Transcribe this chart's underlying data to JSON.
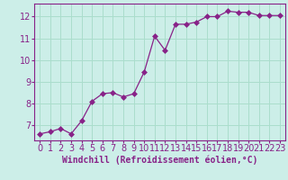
{
  "x": [
    0,
    1,
    2,
    3,
    4,
    5,
    6,
    7,
    8,
    9,
    10,
    11,
    12,
    13,
    14,
    15,
    16,
    17,
    18,
    19,
    20,
    21,
    22,
    23
  ],
  "y": [
    6.6,
    6.7,
    6.85,
    6.6,
    7.2,
    8.1,
    8.45,
    8.5,
    8.3,
    8.45,
    9.45,
    11.1,
    10.45,
    11.65,
    11.65,
    11.75,
    12.0,
    12.0,
    12.25,
    12.2,
    12.2,
    12.05,
    12.05,
    12.05
  ],
  "line_color": "#882288",
  "marker_size": 3,
  "xlabel": "Windchill (Refroidissement éolien,°C)",
  "ylim": [
    6.3,
    12.6
  ],
  "xlim": [
    -0.5,
    23.5
  ],
  "yticks": [
    7,
    8,
    9,
    10,
    11,
    12
  ],
  "xticks": [
    0,
    1,
    2,
    3,
    4,
    5,
    6,
    7,
    8,
    9,
    10,
    11,
    12,
    13,
    14,
    15,
    16,
    17,
    18,
    19,
    20,
    21,
    22,
    23
  ],
  "bg_color": "#cceee8",
  "grid_color": "#aaddcc",
  "axis_color": "#882288",
  "tick_color": "#882288",
  "xlabel_color": "#882288",
  "xlabel_fontsize": 7.0,
  "tick_fontsize": 7.0
}
